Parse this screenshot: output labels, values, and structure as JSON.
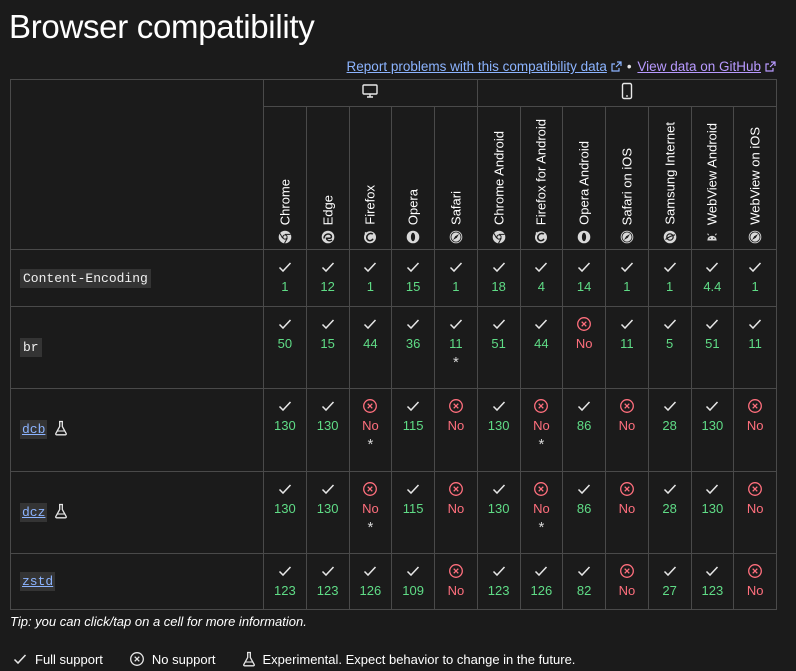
{
  "title": "Browser compatibility",
  "links": {
    "report": "Report problems with this compatibility data",
    "separator": "•",
    "github": "View data on GitHub"
  },
  "platforms": [
    {
      "name": "desktop",
      "icon": "desktop-icon"
    },
    {
      "name": "mobile",
      "icon": "mobile-icon"
    }
  ],
  "browsers": [
    {
      "name": "Chrome",
      "icon": "chrome-icon"
    },
    {
      "name": "Edge",
      "icon": "edge-icon"
    },
    {
      "name": "Firefox",
      "icon": "firefox-icon"
    },
    {
      "name": "Opera",
      "icon": "opera-icon"
    },
    {
      "name": "Safari",
      "icon": "safari-icon"
    },
    {
      "name": "Chrome Android",
      "icon": "chrome-icon"
    },
    {
      "name": "Firefox for Android",
      "icon": "firefox-icon"
    },
    {
      "name": "Opera Android",
      "icon": "opera-icon"
    },
    {
      "name": "Safari on iOS",
      "icon": "safari-icon"
    },
    {
      "name": "Samsung Internet",
      "icon": "samsung-internet-icon"
    },
    {
      "name": "WebView Android",
      "icon": "android-icon"
    },
    {
      "name": "WebView on iOS",
      "icon": "safari-icon"
    }
  ],
  "features": [
    {
      "name": "Content-Encoding",
      "link": false,
      "experimental": false,
      "cells": [
        [
          "y",
          "1",
          ""
        ],
        [
          "y",
          "12",
          ""
        ],
        [
          "y",
          "1",
          ""
        ],
        [
          "y",
          "15",
          ""
        ],
        [
          "y",
          "1",
          ""
        ],
        [
          "y",
          "18",
          ""
        ],
        [
          "y",
          "4",
          ""
        ],
        [
          "y",
          "14",
          ""
        ],
        [
          "y",
          "1",
          ""
        ],
        [
          "y",
          "1",
          ""
        ],
        [
          "y",
          "4.4",
          ""
        ],
        [
          "y",
          "1",
          ""
        ]
      ]
    },
    {
      "name": "br",
      "link": false,
      "experimental": false,
      "cells": [
        [
          "y",
          "50",
          ""
        ],
        [
          "y",
          "15",
          ""
        ],
        [
          "y",
          "44",
          ""
        ],
        [
          "y",
          "36",
          ""
        ],
        [
          "y",
          "11",
          "*"
        ],
        [
          "y",
          "51",
          ""
        ],
        [
          "y",
          "44",
          ""
        ],
        [
          "n",
          "No",
          ""
        ],
        [
          "y",
          "11",
          ""
        ],
        [
          "y",
          "5",
          ""
        ],
        [
          "y",
          "51",
          ""
        ],
        [
          "y",
          "11",
          ""
        ]
      ]
    },
    {
      "name": "dcb",
      "link": true,
      "experimental": true,
      "cells": [
        [
          "y",
          "130",
          ""
        ],
        [
          "y",
          "130",
          ""
        ],
        [
          "n",
          "No",
          "*"
        ],
        [
          "y",
          "115",
          ""
        ],
        [
          "n",
          "No",
          ""
        ],
        [
          "y",
          "130",
          ""
        ],
        [
          "n",
          "No",
          "*"
        ],
        [
          "y",
          "86",
          ""
        ],
        [
          "n",
          "No",
          ""
        ],
        [
          "y",
          "28",
          ""
        ],
        [
          "y",
          "130",
          ""
        ],
        [
          "n",
          "No",
          ""
        ]
      ]
    },
    {
      "name": "dcz",
      "link": true,
      "experimental": true,
      "cells": [
        [
          "y",
          "130",
          ""
        ],
        [
          "y",
          "130",
          ""
        ],
        [
          "n",
          "No",
          "*"
        ],
        [
          "y",
          "115",
          ""
        ],
        [
          "n",
          "No",
          ""
        ],
        [
          "y",
          "130",
          ""
        ],
        [
          "n",
          "No",
          "*"
        ],
        [
          "y",
          "86",
          ""
        ],
        [
          "n",
          "No",
          ""
        ],
        [
          "y",
          "28",
          ""
        ],
        [
          "y",
          "130",
          ""
        ],
        [
          "n",
          "No",
          ""
        ]
      ]
    },
    {
      "name": "zstd",
      "link": true,
      "experimental": false,
      "cells": [
        [
          "y",
          "123",
          ""
        ],
        [
          "y",
          "123",
          ""
        ],
        [
          "y",
          "126",
          ""
        ],
        [
          "y",
          "109",
          ""
        ],
        [
          "n",
          "No",
          ""
        ],
        [
          "y",
          "123",
          ""
        ],
        [
          "y",
          "126",
          ""
        ],
        [
          "y",
          "82",
          ""
        ],
        [
          "n",
          "No",
          ""
        ],
        [
          "y",
          "27",
          ""
        ],
        [
          "y",
          "123",
          ""
        ],
        [
          "n",
          "No",
          ""
        ]
      ]
    }
  ],
  "tip": "Tip: you can click/tap on a cell for more information.",
  "legend": [
    {
      "icon": "check-icon",
      "label": "Full support"
    },
    {
      "icon": "no-support-icon",
      "label": "No support"
    },
    {
      "icon": "flask-icon",
      "label": "Experimental. Expect behavior to change in the future."
    }
  ],
  "colors": {
    "yes": "#5fdc86",
    "no": "#ff6f7d",
    "link": "#8cb4ff",
    "background": "#1b1b1b"
  }
}
